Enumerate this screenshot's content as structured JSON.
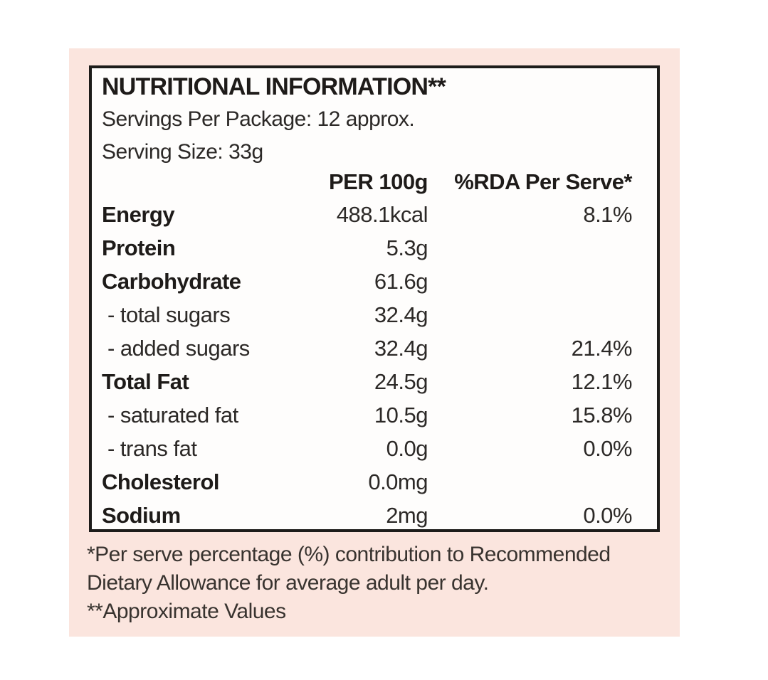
{
  "label": {
    "title": "NUTRITIONAL INFORMATION**",
    "servings_per_package": "Servings Per Package: 12 approx.",
    "serving_size": "Serving Size: 33g",
    "columns": {
      "per_100g": "PER 100g",
      "rda_per_serve": "%RDA Per Serve*"
    },
    "rows": [
      {
        "name": "Energy",
        "per100": "488.1kcal",
        "rda": "8.1%"
      },
      {
        "name": "Protein",
        "per100": "5.3g",
        "rda": ""
      },
      {
        "name": "Carbohydrate",
        "per100": "61.6g",
        "rda": ""
      },
      {
        "name": "- total sugars",
        "per100": "32.4g",
        "rda": ""
      },
      {
        "name": "- added sugars",
        "per100": "32.4g",
        "rda": "21.4%"
      },
      {
        "name": "Total Fat",
        "per100": "24.5g",
        "rda": "12.1%"
      },
      {
        "name": "- saturated fat",
        "per100": "10.5g",
        "rda": "15.8%"
      },
      {
        "name": "- trans fat",
        "per100": "0.0g",
        "rda": "0.0%"
      },
      {
        "name": "Cholesterol",
        "per100": "0.0mg",
        "rda": ""
      },
      {
        "name": "Sodium",
        "per100": "2mg",
        "rda": "0.0%"
      }
    ],
    "footnote_lines": [
      "*Per serve percentage (%) contribution to Recommended",
      "Dietary Allowance for average adult per day.",
      "**Approximate Values"
    ],
    "colors": {
      "panel_pink": "#fbe5de",
      "box_background": "#fefdfc",
      "box_border": "#1d1c1a",
      "text": "#1e1b19"
    }
  }
}
